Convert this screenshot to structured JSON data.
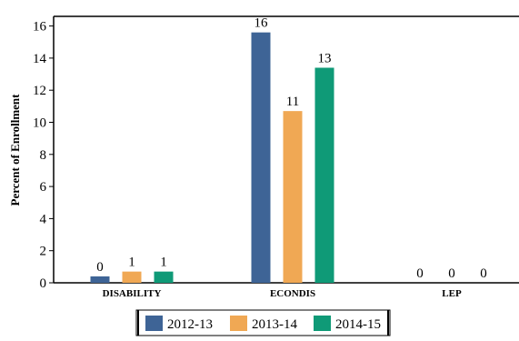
{
  "chart_data": {
    "type": "bar",
    "title": "",
    "xlabel": "",
    "ylabel": "Percent of Enrollment",
    "categories": [
      "DISABILITY",
      "ECONDIS",
      "LEP"
    ],
    "yticks": [
      "0",
      "2",
      "4",
      "6",
      "8",
      "10",
      "12",
      "14",
      "16"
    ],
    "ylim": [
      0,
      16.6
    ],
    "grid": false,
    "legend_position": "bottom",
    "series": [
      {
        "name": "2012-13",
        "color": "#3e6496",
        "values": [
          0.4,
          15.6,
          0
        ],
        "labels": [
          "0",
          "16",
          "0"
        ]
      },
      {
        "name": "2013-14",
        "color": "#f0a854",
        "values": [
          0.7,
          10.7,
          0
        ],
        "labels": [
          "1",
          "11",
          "0"
        ]
      },
      {
        "name": "2014-15",
        "color": "#0f9a77",
        "values": [
          0.7,
          13.4,
          0
        ],
        "labels": [
          "1",
          "13",
          "0"
        ]
      }
    ]
  }
}
